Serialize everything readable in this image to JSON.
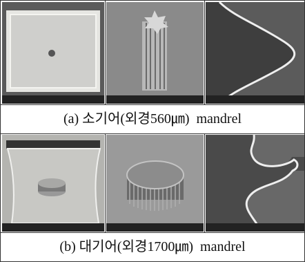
{
  "figure": {
    "rows": [
      {
        "caption": "(a) 소기어(외경560㎛)  mandrel"
      },
      {
        "caption": "(b) 대기어(외경1700㎛)  mandrel"
      }
    ]
  }
}
